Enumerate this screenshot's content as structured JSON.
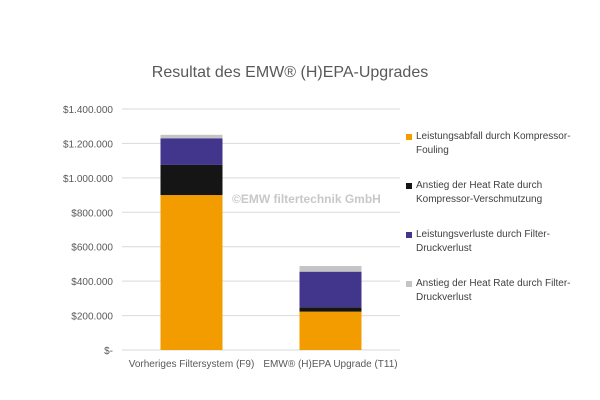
{
  "chart_data": {
    "type": "bar",
    "stacked": true,
    "title": "Resultat des EMW® (H)EPA-Upgrades",
    "watermark": "©EMW filtertechnik GmbH",
    "categories": [
      "Vorheriges Filtersystem (F9)",
      "EMW® (H)EPA Upgrade (T11)"
    ],
    "series": [
      {
        "name": "Leistungsabfall durch Kompressor-Fouling",
        "color": "#F39C00",
        "values": [
          900000,
          223000
        ]
      },
      {
        "name": "Anstieg der Heat Rate durch Kompressor-Verschmutzung",
        "color": "#151515",
        "values": [
          175000,
          25000
        ]
      },
      {
        "name": "Leistungsverluste durch Filter-Druckverlust",
        "color": "#42368C",
        "values": [
          155000,
          207000
        ]
      },
      {
        "name": "Anstieg der Heat Rate durch Filter-Druckverlust",
        "color": "#C4C4C4",
        "values": [
          20000,
          33000
        ]
      }
    ],
    "ylim": [
      0,
      1400000
    ],
    "yticks": [
      0,
      200000,
      400000,
      600000,
      800000,
      1000000,
      1200000,
      1400000
    ],
    "ytick_labels": [
      "$-",
      "$200.000",
      "$400.000",
      "$600.000",
      "$800.000",
      "$1.000.000",
      "$1.200.000",
      "$1.400.000"
    ],
    "grid": true,
    "legend": "right"
  }
}
